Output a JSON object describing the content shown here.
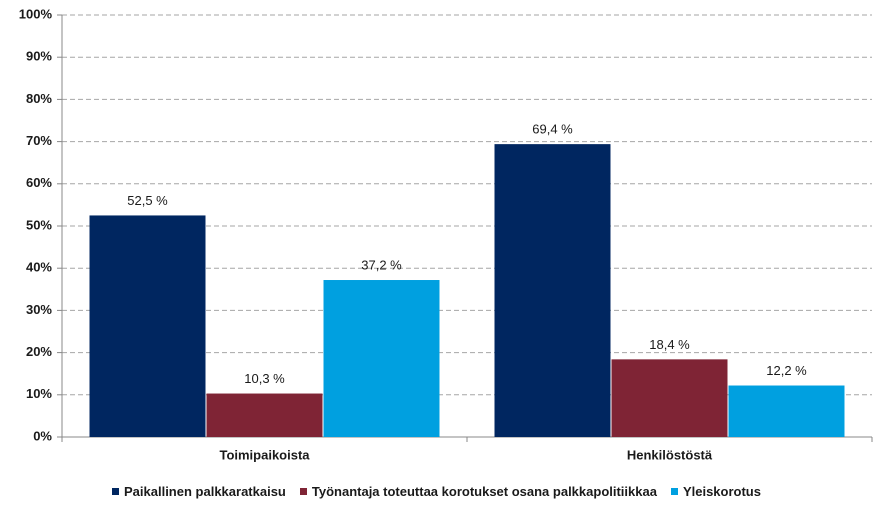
{
  "chart_data": {
    "type": "bar",
    "categories": [
      "Toimipaikoista",
      "Henkilöstöstä"
    ],
    "series": [
      {
        "name": "Paikallinen palkkaratkaisu",
        "color": "#002660",
        "values": [
          52.5,
          69.4
        ],
        "value_labels": [
          "52,5 %",
          "69,4 %"
        ]
      },
      {
        "name": "Työnantaja toteuttaa korotukset osana palkkapolitiikkaa",
        "color": "#7f2435",
        "values": [
          10.3,
          18.4
        ],
        "value_labels": [
          "10,3 %",
          "18,4 %"
        ]
      },
      {
        "name": "Yleiskorotus",
        "color": "#00a0e0",
        "values": [
          37.2,
          12.2
        ],
        "value_labels": [
          "37,2 %",
          "12,2 %"
        ]
      }
    ],
    "ylim": [
      0,
      100
    ],
    "yticks": [
      {
        "value": 0,
        "label": "0%"
      },
      {
        "value": 10,
        "label": "10%"
      },
      {
        "value": 20,
        "label": "20%"
      },
      {
        "value": 30,
        "label": "30%"
      },
      {
        "value": 40,
        "label": "40%"
      },
      {
        "value": 50,
        "label": "50%"
      },
      {
        "value": 60,
        "label": "60%"
      },
      {
        "value": 70,
        "label": "70%"
      },
      {
        "value": 80,
        "label": "80%"
      },
      {
        "value": 90,
        "label": "90%"
      },
      {
        "value": 100,
        "label": "100%"
      }
    ],
    "grid": true,
    "legend": "bottom"
  }
}
